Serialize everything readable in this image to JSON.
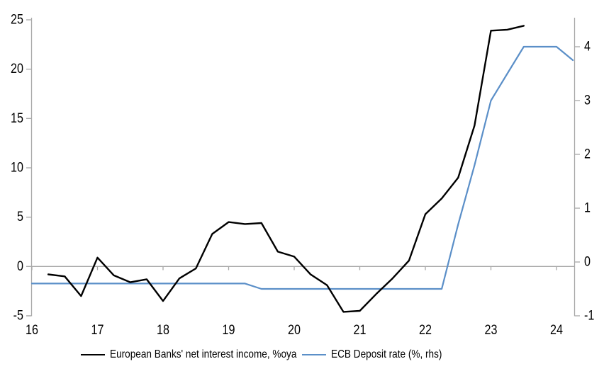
{
  "chart_data": {
    "type": "line",
    "x_axis": {
      "ticks": [
        16,
        17,
        18,
        19,
        20,
        21,
        22,
        23,
        24
      ],
      "min": 16,
      "max": 24.27
    },
    "left_axis": {
      "ticks": [
        25,
        20,
        15,
        10,
        5,
        0,
        -5
      ],
      "min": -5,
      "max": 25
    },
    "right_axis": {
      "ticks": [
        4,
        3,
        2,
        1,
        0,
        -1
      ],
      "min": -1,
      "max": 4.5
    },
    "grid": "zero-line-only",
    "legend_position": "bottom",
    "series": [
      {
        "name": "European Banks' net interest income, %oya",
        "axis": "left",
        "color": "#000000",
        "points": [
          [
            16.25,
            -0.8
          ],
          [
            16.5,
            -1.0
          ],
          [
            16.75,
            -3.0
          ],
          [
            17.0,
            0.9
          ],
          [
            17.25,
            -0.9
          ],
          [
            17.5,
            -1.6
          ],
          [
            17.75,
            -1.3
          ],
          [
            18.0,
            -3.5
          ],
          [
            18.25,
            -1.2
          ],
          [
            18.5,
            -0.2
          ],
          [
            18.75,
            3.3
          ],
          [
            19.0,
            4.5
          ],
          [
            19.25,
            4.3
          ],
          [
            19.5,
            4.4
          ],
          [
            19.75,
            1.5
          ],
          [
            20.0,
            1.0
          ],
          [
            20.25,
            -0.8
          ],
          [
            20.5,
            -1.9
          ],
          [
            20.75,
            -4.6
          ],
          [
            21.0,
            -4.5
          ],
          [
            21.25,
            -2.8
          ],
          [
            21.5,
            -1.2
          ],
          [
            21.75,
            0.6
          ],
          [
            22.0,
            5.3
          ],
          [
            22.25,
            6.9
          ],
          [
            22.5,
            9.0
          ],
          [
            22.75,
            14.3
          ],
          [
            23.0,
            23.9
          ],
          [
            23.25,
            24.0
          ],
          [
            23.5,
            24.4
          ]
        ]
      },
      {
        "name": "ECB Deposit rate (%, rhs)",
        "axis": "right",
        "color": "#5b8fc8",
        "points": [
          [
            16.0,
            -0.4
          ],
          [
            16.25,
            -0.4
          ],
          [
            16.5,
            -0.4
          ],
          [
            16.75,
            -0.4
          ],
          [
            17.0,
            -0.4
          ],
          [
            17.25,
            -0.4
          ],
          [
            17.5,
            -0.4
          ],
          [
            17.75,
            -0.4
          ],
          [
            18.0,
            -0.4
          ],
          [
            18.25,
            -0.4
          ],
          [
            18.5,
            -0.4
          ],
          [
            18.75,
            -0.4
          ],
          [
            19.0,
            -0.4
          ],
          [
            19.25,
            -0.4
          ],
          [
            19.5,
            -0.5
          ],
          [
            19.75,
            -0.5
          ],
          [
            20.0,
            -0.5
          ],
          [
            20.25,
            -0.5
          ],
          [
            20.5,
            -0.5
          ],
          [
            20.75,
            -0.5
          ],
          [
            21.0,
            -0.5
          ],
          [
            21.25,
            -0.5
          ],
          [
            21.5,
            -0.5
          ],
          [
            21.75,
            -0.5
          ],
          [
            22.0,
            -0.5
          ],
          [
            22.25,
            -0.5
          ],
          [
            22.5,
            0.7
          ],
          [
            22.75,
            1.8
          ],
          [
            23.0,
            3.0
          ],
          [
            23.25,
            3.5
          ],
          [
            23.5,
            4.0
          ],
          [
            23.75,
            4.0
          ],
          [
            24.0,
            4.0
          ],
          [
            24.25,
            3.75
          ]
        ]
      }
    ],
    "colors": {
      "axis_line": "#a8a8a8",
      "tick_text": "#000000",
      "nii_line": "#000000",
      "ecb_line": "#5b8fc8"
    }
  }
}
